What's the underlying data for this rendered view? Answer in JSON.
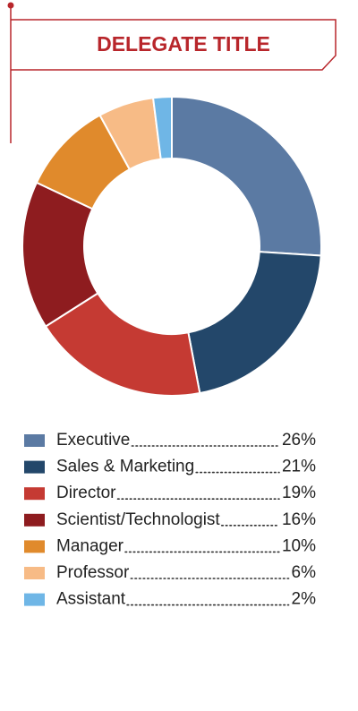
{
  "chart_data": {
    "type": "donut",
    "title": "DELEGATE TITLE",
    "categories": [
      "Executive",
      "Sales & Marketing",
      "Director",
      "Scientist/Technologist",
      "Manager",
      "Professor",
      "Assistant"
    ],
    "values": [
      26,
      21,
      19,
      16,
      10,
      6,
      2
    ],
    "value_labels": [
      "26%",
      "21%",
      "19%",
      "16%",
      "10%",
      "6%",
      "2%"
    ],
    "colors": [
      "#5b7aa3",
      "#23476a",
      "#c53a33",
      "#8e1c1f",
      "#e08a2c",
      "#f7bb86",
      "#6fb6e6"
    ]
  }
}
